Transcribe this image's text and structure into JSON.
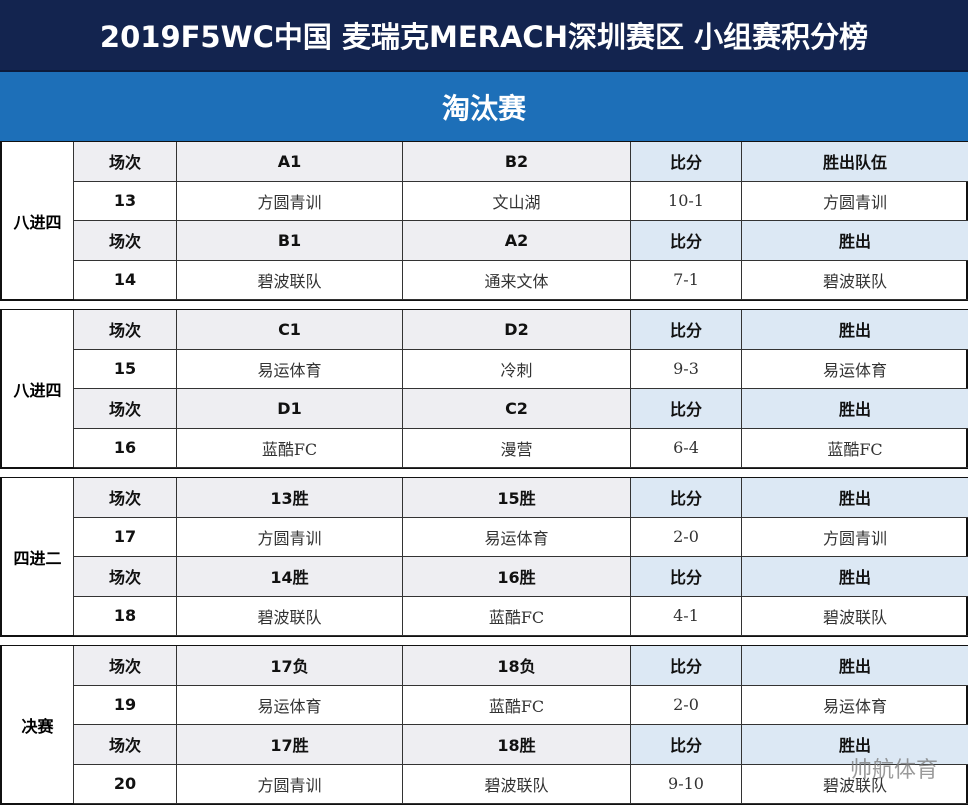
{
  "title": "2019F5WC中国 麦瑞克MERACH深圳赛区  小组赛积分榜",
  "subtitle": "淘汰赛",
  "watermark": "帅航体育",
  "groups": [
    {
      "label": "八进四",
      "rows": [
        [
          "场次",
          "A1",
          "B2",
          "比分",
          "胜出队伍"
        ],
        [
          "13",
          "方圆青训",
          "文山湖",
          "10-1",
          "方圆青训"
        ],
        [
          "场次",
          "B1",
          "A2",
          "比分",
          "胜出"
        ],
        [
          "14",
          "碧波联队",
          "通来文体",
          "7-1",
          "碧波联队"
        ]
      ]
    },
    {
      "label": "八进四",
      "rows": [
        [
          "场次",
          "C1",
          "D2",
          "比分",
          "胜出"
        ],
        [
          "15",
          "易运体育",
          "冷刺",
          "9-3",
          "易运体育"
        ],
        [
          "场次",
          "D1",
          "C2",
          "比分",
          "胜出"
        ],
        [
          "16",
          "蓝酷FC",
          "漫营",
          "6-4",
          "蓝酷FC"
        ]
      ]
    },
    {
      "label": "四进二",
      "rows": [
        [
          "场次",
          "13胜",
          "15胜",
          "比分",
          "胜出"
        ],
        [
          "17",
          "方圆青训",
          "易运体育",
          "2-0",
          "方圆青训"
        ],
        [
          "场次",
          "14胜",
          "16胜",
          "比分",
          "胜出"
        ],
        [
          "18",
          "碧波联队",
          "蓝酷FC",
          "4-1",
          "碧波联队"
        ]
      ]
    },
    {
      "label": "决赛",
      "rows": [
        [
          "场次",
          "17负",
          "18负",
          "比分",
          "胜出"
        ],
        [
          "19",
          "易运体育",
          "蓝酷FC",
          "2-0",
          "易运体育"
        ],
        [
          "场次",
          "17胜",
          "18胜",
          "比分",
          "胜出"
        ],
        [
          "20",
          "方圆青训",
          "碧波联队",
          "9-10",
          "碧波联队"
        ]
      ]
    }
  ]
}
